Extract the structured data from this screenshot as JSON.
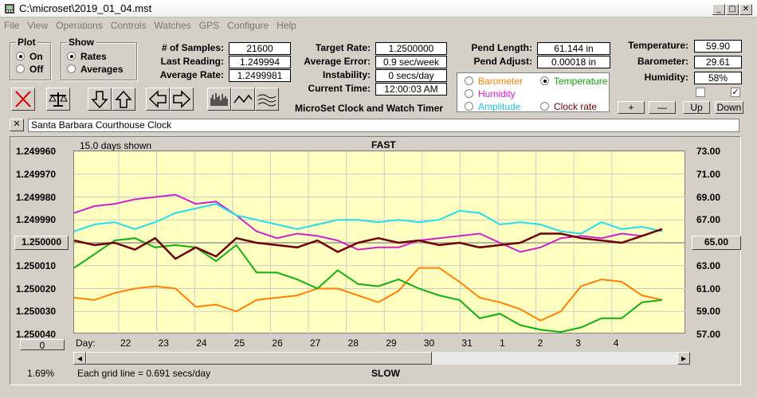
{
  "window": {
    "title": "C:\\microset\\2019_01_04.mst"
  },
  "menu": [
    "File",
    "View",
    "Operations",
    "Controls",
    "Watches",
    "GPS",
    "Configure",
    "Help"
  ],
  "plot_group": {
    "title": "Plot",
    "on": "On",
    "off": "Off",
    "selected": "On"
  },
  "show_group": {
    "title": "Show",
    "rates": "Rates",
    "averages": "Averages",
    "selected": "Rates"
  },
  "stats": {
    "samples_label": "# of Samples:",
    "samples": "21600",
    "last_reading_label": "Last Reading:",
    "last_reading": "1.249994",
    "average_rate_label": "Average Rate:",
    "average_rate": "1.2499981",
    "target_rate_label": "Target Rate:",
    "target_rate": "1.2500000",
    "average_error_label": "Average Error:",
    "average_error": "0.9 sec/week",
    "instability_label": "Instability:",
    "instability": "0 secs/day",
    "current_time_label": "Current Time:",
    "current_time": "12:00:03 AM",
    "pend_length_label": "Pend Length:",
    "pend_length": "61.144 in",
    "pend_adjust_label": "Pend Adjust:",
    "pend_adjust": "0.00018 in",
    "temperature_label": "Temperature:",
    "temperature": "59.90",
    "barometer_label": "Barometer:",
    "barometer": "29.61",
    "humidity_label": "Humidity:",
    "humidity": "58%"
  },
  "app_name": "MicroSet Clock and Watch Timer",
  "series_options": {
    "barometer": "Barometer",
    "humidity": "Humidity",
    "amplitude": "Amplitude",
    "temperature": "Temperature",
    "clock_rate": "Clock rate",
    "selected": "Temperature"
  },
  "step_buttons": {
    "plus": "+",
    "minus": "—",
    "up": "Up",
    "down": "Down"
  },
  "clock_name": "Santa Barbara Courthouse Clock",
  "plot": {
    "days_shown": "15.0 days shown",
    "top": "FAST",
    "bottom": "SLOW",
    "grid_note": "Each grid line = 0.691 secs/day",
    "left_button": "0",
    "percent": "1.69%",
    "right_button": "65.00",
    "day_label": "Day:"
  },
  "colors": {
    "barometer": "#ff8000",
    "humidity": "#d020d0",
    "amplitude": "#20e0f0",
    "temperature": "#10b010",
    "clock_rate": "#700000",
    "plot_bg": "#ffffc0"
  },
  "chart_data": {
    "type": "line",
    "title": "",
    "xlabel": "Day",
    "x_ticks": [
      "22",
      "23",
      "24",
      "25",
      "26",
      "27",
      "28",
      "29",
      "30",
      "31",
      "1",
      "2",
      "3",
      "4"
    ],
    "y_left_ticks": [
      "1.249960",
      "1.249970",
      "1.249980",
      "1.249990",
      "1.250000",
      "1.250010",
      "1.250020",
      "1.250030",
      "1.250040"
    ],
    "y_right_ticks": [
      "73.00",
      "71.00",
      "69.00",
      "67.00",
      "65.00",
      "63.00",
      "61.00",
      "59.00",
      "57.00"
    ],
    "ylim_left": [
      1.24996,
      1.25004
    ],
    "ylim_right": [
      57,
      73
    ],
    "series": [
      {
        "name": "Barometer",
        "color": "#ff8000",
        "values": [
          1.250024,
          1.250025,
          1.250022,
          1.25002,
          1.250019,
          1.25002,
          1.250028,
          1.250027,
          1.25003,
          1.250025,
          1.250024,
          1.250023,
          1.25002,
          1.25002,
          1.250023,
          1.250026,
          1.250021,
          1.250011,
          1.250011,
          1.250017,
          1.250024,
          1.250026,
          1.250029,
          1.250034,
          1.25003,
          1.250019,
          1.250016,
          1.250017,
          1.250023,
          1.250025
        ]
      },
      {
        "name": "Humidity",
        "color": "#d020d0",
        "values": [
          1.249987,
          1.249984,
          1.249983,
          1.249981,
          1.24998,
          1.249979,
          1.249983,
          1.249982,
          1.249988,
          1.249995,
          1.249998,
          1.249996,
          1.249997,
          1.249999,
          1.250003,
          1.250002,
          1.250002,
          1.249999,
          1.249998,
          1.249997,
          1.249996,
          1.25,
          1.250004,
          1.250002,
          1.249998,
          1.249997,
          1.249998,
          1.249996,
          1.249997,
          1.249994
        ]
      },
      {
        "name": "Amplitude",
        "color": "#20e0f0",
        "values": [
          1.249995,
          1.249992,
          1.249991,
          1.249994,
          1.249991,
          1.249987,
          1.249985,
          1.249983,
          1.249988,
          1.24999,
          1.249992,
          1.249994,
          1.249992,
          1.24999,
          1.24999,
          1.249991,
          1.24999,
          1.249991,
          1.24999,
          1.249986,
          1.249987,
          1.249992,
          1.249991,
          1.249992,
          1.249995,
          1.249996,
          1.249991,
          1.249994,
          1.249993,
          1.249995
        ]
      },
      {
        "name": "Temperature",
        "color": "#10b010",
        "values": [
          1.250011,
          1.250005,
          1.249999,
          1.249998,
          1.250002,
          1.250001,
          1.250002,
          1.250008,
          1.250001,
          1.250013,
          1.250013,
          1.250016,
          1.25002,
          1.250012,
          1.250018,
          1.250019,
          1.250016,
          1.25002,
          1.250023,
          1.250025,
          1.250033,
          1.250031,
          1.250036,
          1.250038,
          1.250039,
          1.250037,
          1.250033,
          1.250033,
          1.250026,
          1.250025
        ]
      },
      {
        "name": "Clock rate",
        "color": "#700000",
        "values": [
          1.249999,
          1.250001,
          1.25,
          1.250003,
          1.249998,
          1.250007,
          1.250002,
          1.250006,
          1.249998,
          1.25,
          1.250001,
          1.250002,
          1.249999,
          1.250004,
          1.25,
          1.249998,
          1.25,
          1.249999,
          1.250001,
          1.25,
          1.250002,
          1.250001,
          1.25,
          1.249996,
          1.249996,
          1.249998,
          1.249999,
          1.25,
          1.249997,
          1.249994
        ]
      }
    ]
  }
}
